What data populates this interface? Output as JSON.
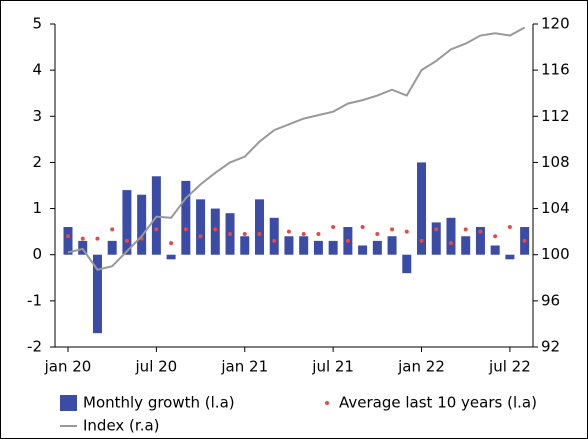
{
  "chart_data": {
    "type": "bar",
    "categories": [
      "jan 20",
      null,
      null,
      null,
      null,
      null,
      "jul 20",
      null,
      null,
      null,
      null,
      null,
      "jan 21",
      null,
      null,
      null,
      null,
      null,
      "jul 21",
      null,
      null,
      null,
      null,
      null,
      "jan 22",
      null,
      null,
      null,
      null,
      null,
      "jul 22",
      null
    ],
    "series": [
      {
        "name": "Monthly growth (l.a)",
        "type": "bar",
        "color": "#3a4ca6",
        "values": [
          0.6,
          0.3,
          -1.7,
          0.3,
          1.4,
          1.3,
          1.7,
          -0.1,
          1.6,
          1.2,
          1.0,
          0.9,
          0.4,
          1.2,
          0.8,
          0.4,
          0.4,
          0.3,
          0.3,
          0.6,
          0.2,
          0.3,
          0.4,
          -0.4,
          2.0,
          0.7,
          0.8,
          0.4,
          0.6,
          0.2,
          -0.1,
          0.6
        ]
      },
      {
        "name": "Average last 10 years (l.a)",
        "type": "scatter",
        "color": "#e8484a",
        "values": [
          0.4,
          0.35,
          0.35,
          0.55,
          0.3,
          0.35,
          0.55,
          0.25,
          0.55,
          0.4,
          0.55,
          0.45,
          0.45,
          0.45,
          0.3,
          0.5,
          0.45,
          0.45,
          0.6,
          0.3,
          0.6,
          0.45,
          0.55,
          0.5,
          0.3,
          0.55,
          0.25,
          0.55,
          0.5,
          0.4,
          0.6,
          0.3
        ]
      },
      {
        "name": "Index (r.a)",
        "type": "line",
        "color": "#999999",
        "axis": "y2",
        "values": [
          100.2,
          100.5,
          98.7,
          99.0,
          100.3,
          101.6,
          103.3,
          103.2,
          104.9,
          106.1,
          107.1,
          108.0,
          108.5,
          109.8,
          110.8,
          111.3,
          111.8,
          112.1,
          112.4,
          113.1,
          113.4,
          113.8,
          114.3,
          113.8,
          116.0,
          116.8,
          117.8,
          118.3,
          119.0,
          119.2,
          119.0,
          119.7
        ]
      }
    ],
    "ylim": [
      -2,
      5
    ],
    "yticks": [
      -2,
      -1,
      0,
      1,
      2,
      3,
      4,
      5
    ],
    "y2lim": [
      92,
      120
    ],
    "y2ticks": [
      92,
      96,
      100,
      104,
      108,
      112,
      116,
      120
    ]
  }
}
